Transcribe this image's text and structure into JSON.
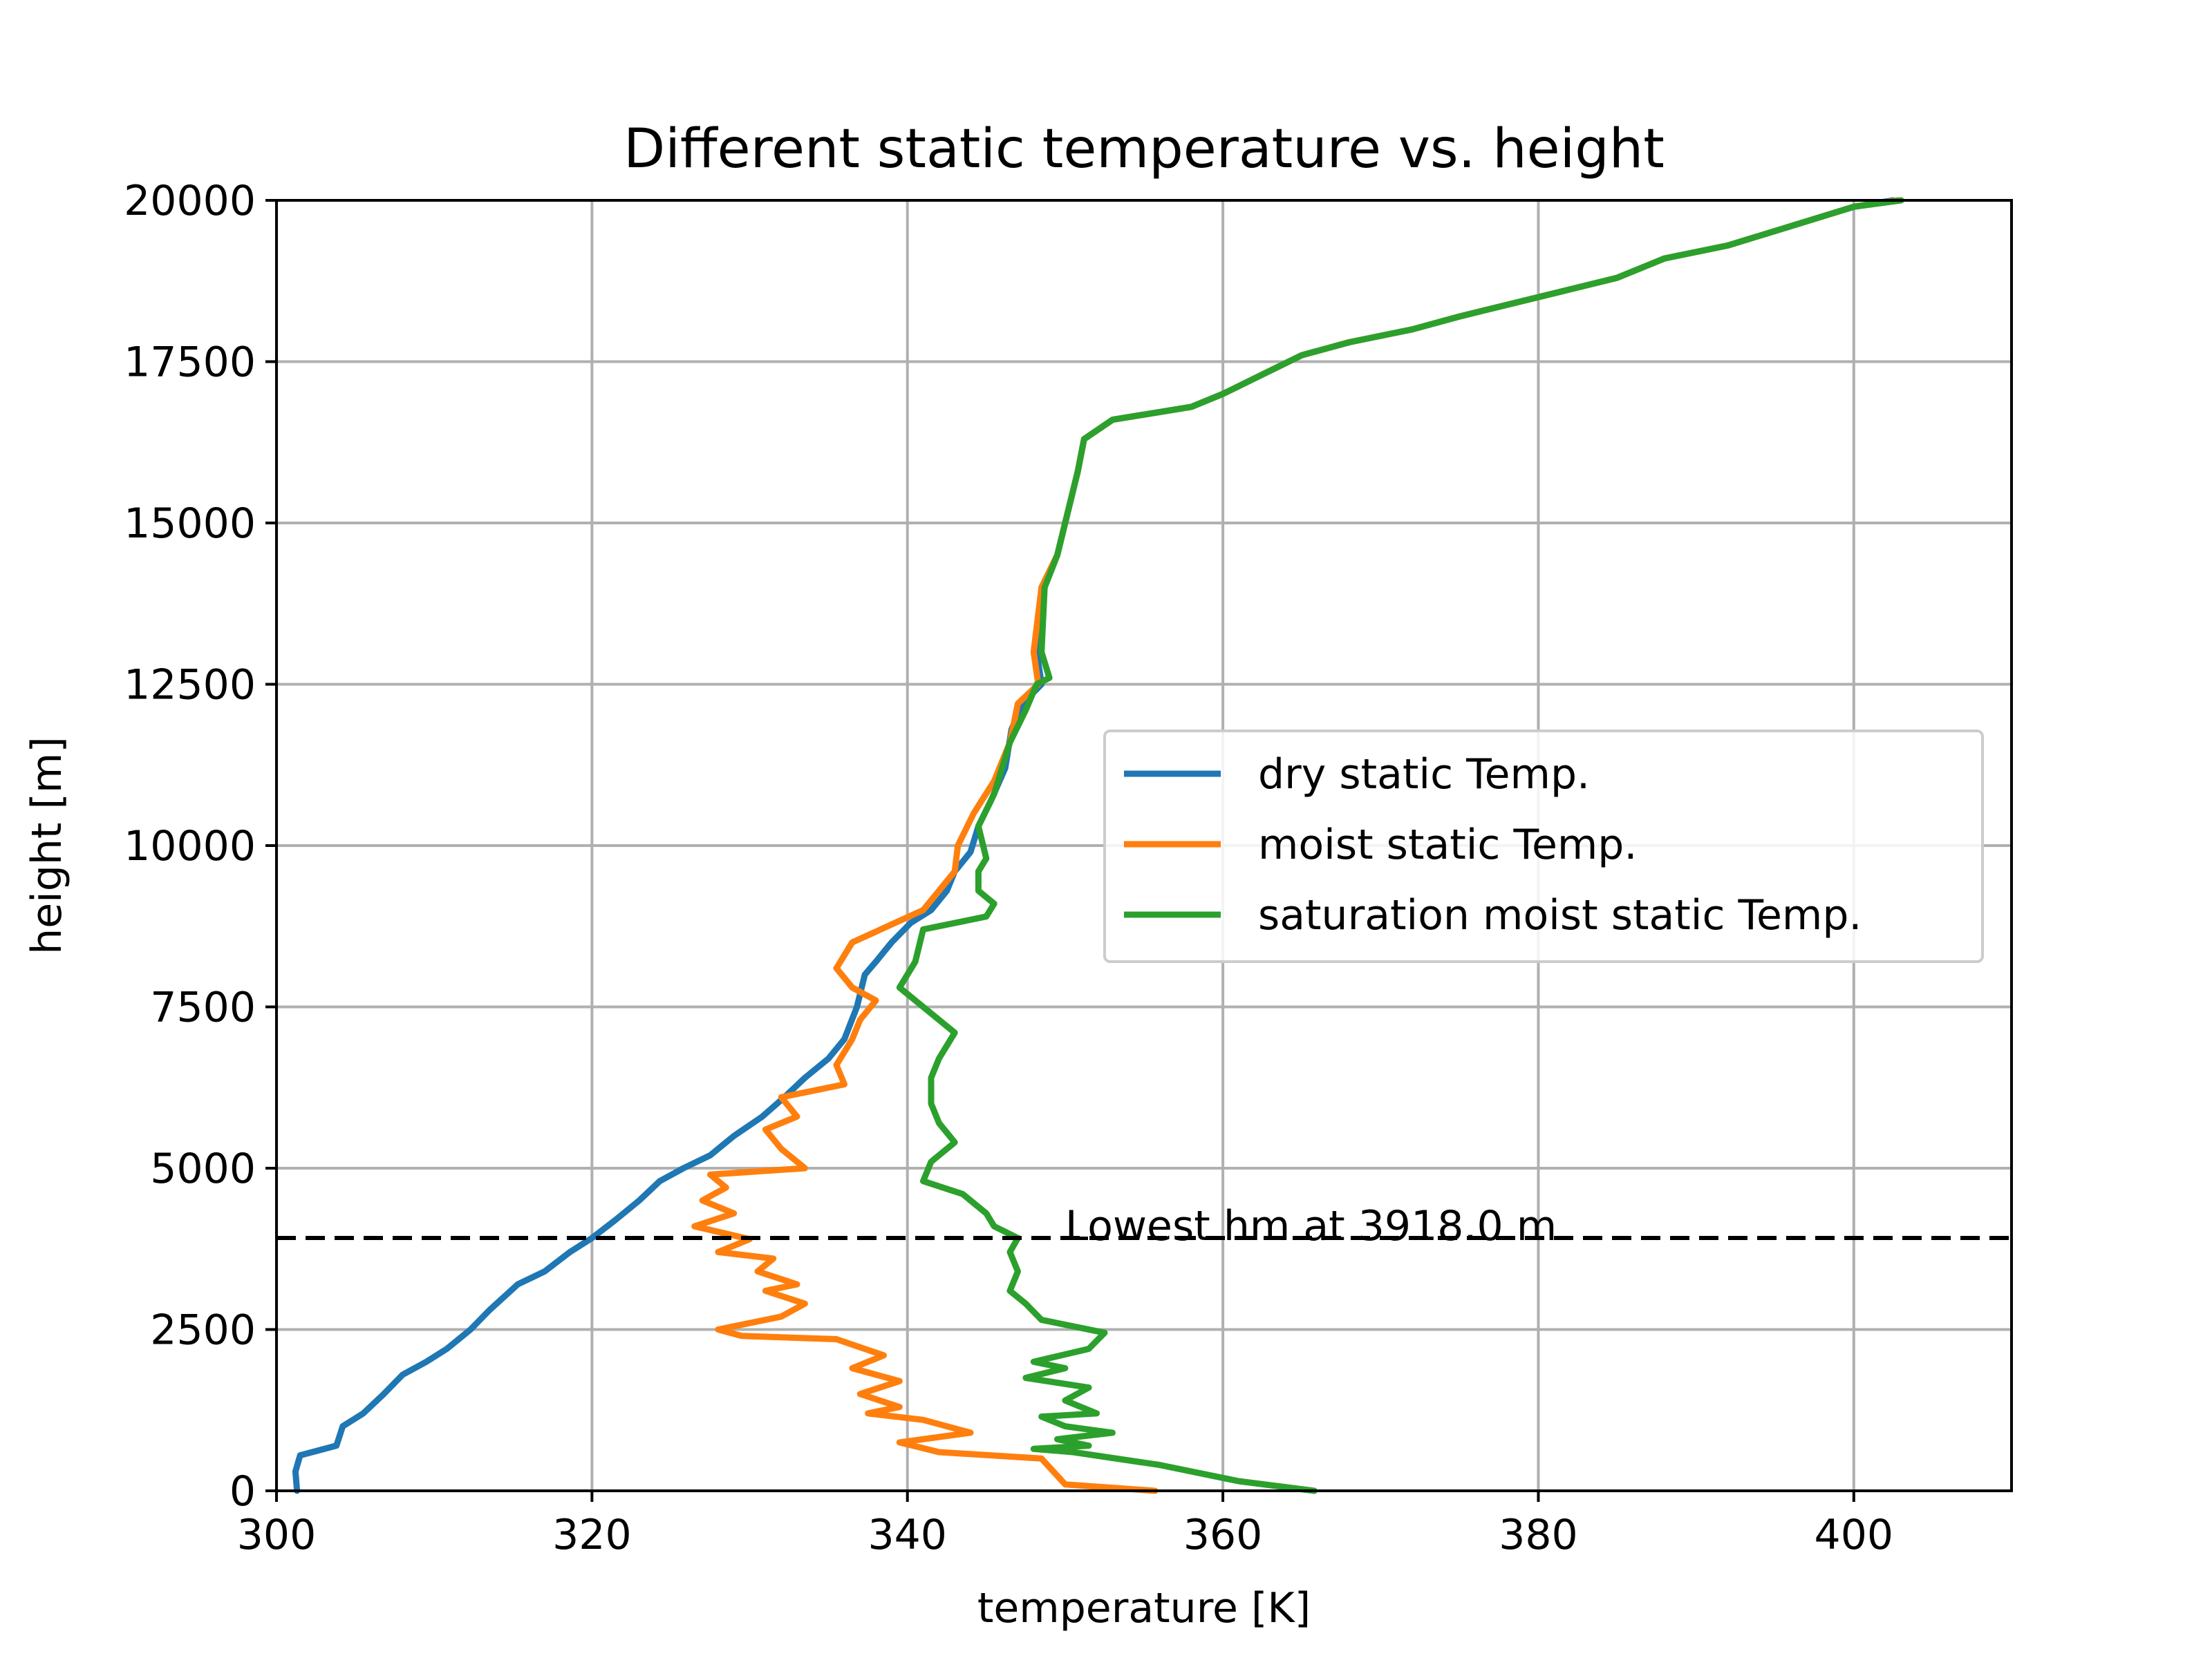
{
  "chart_data": {
    "type": "line",
    "title": "Different static temperature vs. height",
    "xlabel": "temperature [K]",
    "ylabel": "height [m]",
    "xlim": [
      300,
      410
    ],
    "ylim": [
      0,
      20000
    ],
    "xticks": [
      300,
      320,
      340,
      360,
      380,
      400
    ],
    "yticks": [
      0,
      2500,
      5000,
      7500,
      10000,
      12500,
      15000,
      17500,
      20000
    ],
    "grid": true,
    "legend_position": "center-right",
    "series": [
      {
        "name": "dry static Temp.",
        "color": "#1f77b4",
        "points": [
          [
            301.3,
            0
          ],
          [
            301.2,
            300
          ],
          [
            301.5,
            550
          ],
          [
            303.8,
            700
          ],
          [
            304.2,
            1000
          ],
          [
            305.5,
            1200
          ],
          [
            306.8,
            1500
          ],
          [
            308,
            1800
          ],
          [
            309.5,
            2000
          ],
          [
            310.8,
            2200
          ],
          [
            312.3,
            2500
          ],
          [
            313.5,
            2800
          ],
          [
            315.3,
            3200
          ],
          [
            317,
            3400
          ],
          [
            318.6,
            3700
          ],
          [
            320,
            3918
          ],
          [
            321.5,
            4200
          ],
          [
            323,
            4500
          ],
          [
            324.3,
            4800
          ],
          [
            325.8,
            5000
          ],
          [
            327.5,
            5200
          ],
          [
            329,
            5500
          ],
          [
            330.8,
            5800
          ],
          [
            332.2,
            6100
          ],
          [
            333.5,
            6400
          ],
          [
            335,
            6700
          ],
          [
            336,
            7000
          ],
          [
            336.8,
            7500
          ],
          [
            337.3,
            8000
          ],
          [
            338,
            8200
          ],
          [
            339,
            8500
          ],
          [
            340.2,
            8800
          ],
          [
            341.5,
            9000
          ],
          [
            342.5,
            9300
          ],
          [
            343,
            9600
          ],
          [
            344,
            9900
          ],
          [
            344.5,
            10300
          ],
          [
            345.3,
            10700
          ],
          [
            346.2,
            11200
          ],
          [
            346.6,
            11800
          ],
          [
            347.3,
            12200
          ],
          [
            348.5,
            12500
          ],
          [
            348.2,
            13000
          ],
          [
            348.5,
            14000
          ],
          [
            349.5,
            14500
          ],
          [
            350,
            15000
          ],
          [
            350.8,
            15800
          ],
          [
            351.2,
            16300
          ],
          [
            353,
            16600
          ],
          [
            358,
            16800
          ],
          [
            360,
            17000
          ],
          [
            362.5,
            17300
          ],
          [
            365,
            17600
          ],
          [
            368,
            17800
          ],
          [
            372,
            18000
          ],
          [
            375,
            18200
          ],
          [
            380,
            18500
          ],
          [
            385,
            18800
          ],
          [
            388,
            19100
          ],
          [
            392,
            19300
          ],
          [
            396,
            19600
          ],
          [
            400,
            19900
          ],
          [
            402.5,
            20000
          ]
        ]
      },
      {
        "name": "moist static Temp.",
        "color": "#ff7f0e",
        "points": [
          [
            355.7,
            0
          ],
          [
            350,
            100
          ],
          [
            348.5,
            500
          ],
          [
            342,
            600
          ],
          [
            339.5,
            750
          ],
          [
            344,
            900
          ],
          [
            341,
            1100
          ],
          [
            337.5,
            1200
          ],
          [
            339.5,
            1300
          ],
          [
            337,
            1500
          ],
          [
            339.5,
            1700
          ],
          [
            336.5,
            1900
          ],
          [
            338.5,
            2100
          ],
          [
            335.5,
            2350
          ],
          [
            329.5,
            2400
          ],
          [
            328,
            2500
          ],
          [
            332,
            2700
          ],
          [
            333.5,
            2900
          ],
          [
            331,
            3100
          ],
          [
            333,
            3200
          ],
          [
            330.5,
            3400
          ],
          [
            331.5,
            3600
          ],
          [
            328,
            3700
          ],
          [
            330,
            3900
          ],
          [
            326.5,
            4100
          ],
          [
            329,
            4300
          ],
          [
            327,
            4500
          ],
          [
            328.5,
            4700
          ],
          [
            327.5,
            4900
          ],
          [
            333.5,
            5000
          ],
          [
            332,
            5300
          ],
          [
            331,
            5600
          ],
          [
            333,
            5800
          ],
          [
            332,
            6100
          ],
          [
            336,
            6300
          ],
          [
            335.5,
            6600
          ],
          [
            336.5,
            7000
          ],
          [
            337,
            7300
          ],
          [
            338,
            7600
          ],
          [
            336.5,
            7800
          ],
          [
            335.5,
            8100
          ],
          [
            336.5,
            8500
          ],
          [
            341,
            9000
          ],
          [
            342,
            9300
          ],
          [
            343,
            9600
          ],
          [
            343.2,
            10000
          ],
          [
            344.2,
            10500
          ],
          [
            345.5,
            11000
          ],
          [
            346.5,
            11600
          ],
          [
            347,
            12200
          ],
          [
            348.3,
            12500
          ],
          [
            348,
            13000
          ],
          [
            348.5,
            14000
          ],
          [
            349.5,
            14500
          ],
          [
            350,
            15000
          ],
          [
            350.8,
            15800
          ],
          [
            351.2,
            16300
          ],
          [
            353,
            16600
          ],
          [
            358,
            16800
          ],
          [
            360,
            17000
          ],
          [
            362.5,
            17300
          ],
          [
            365,
            17600
          ],
          [
            368,
            17800
          ],
          [
            372,
            18000
          ],
          [
            375,
            18200
          ],
          [
            380,
            18500
          ],
          [
            385,
            18800
          ],
          [
            388,
            19100
          ],
          [
            392,
            19300
          ],
          [
            396,
            19600
          ],
          [
            400,
            19900
          ],
          [
            402.8,
            20000
          ]
        ]
      },
      {
        "name": "saturation moist static Temp.",
        "color": "#2ca02c",
        "points": [
          [
            365.8,
            0
          ],
          [
            361,
            150
          ],
          [
            356,
            400
          ],
          [
            350.5,
            600
          ],
          [
            348,
            650
          ],
          [
            351.5,
            700
          ],
          [
            349.5,
            800
          ],
          [
            353,
            900
          ],
          [
            350,
            1000
          ],
          [
            348.5,
            1150
          ],
          [
            352,
            1200
          ],
          [
            350,
            1400
          ],
          [
            351.5,
            1600
          ],
          [
            347.5,
            1750
          ],
          [
            350,
            1900
          ],
          [
            348,
            2000
          ],
          [
            351.5,
            2200
          ],
          [
            352.5,
            2450
          ],
          [
            348.5,
            2650
          ],
          [
            347.5,
            2900
          ],
          [
            346.5,
            3100
          ],
          [
            347,
            3400
          ],
          [
            346.5,
            3700
          ],
          [
            347,
            3918
          ],
          [
            345.5,
            4100
          ],
          [
            345,
            4300
          ],
          [
            343.5,
            4600
          ],
          [
            341,
            4800
          ],
          [
            341.5,
            5100
          ],
          [
            343,
            5400
          ],
          [
            342,
            5700
          ],
          [
            341.5,
            6000
          ],
          [
            341.5,
            6400
          ],
          [
            342,
            6700
          ],
          [
            343,
            7100
          ],
          [
            341,
            7500
          ],
          [
            339.5,
            7800
          ],
          [
            340.5,
            8200
          ],
          [
            341,
            8700
          ],
          [
            345,
            8900
          ],
          [
            345.5,
            9100
          ],
          [
            344.5,
            9300
          ],
          [
            344.5,
            9600
          ],
          [
            345,
            9800
          ],
          [
            344.5,
            10300
          ],
          [
            345.5,
            10800
          ],
          [
            346,
            11200
          ],
          [
            346.5,
            11600
          ],
          [
            347.5,
            12100
          ],
          [
            348.2,
            12500
          ],
          [
            349,
            12600
          ],
          [
            348.5,
            13000
          ],
          [
            348.7,
            14000
          ],
          [
            349.5,
            14500
          ],
          [
            350,
            15000
          ],
          [
            350.8,
            15800
          ],
          [
            351.2,
            16300
          ],
          [
            353,
            16600
          ],
          [
            358,
            16800
          ],
          [
            360,
            17000
          ],
          [
            362.5,
            17300
          ],
          [
            365,
            17600
          ],
          [
            368,
            17800
          ],
          [
            372,
            18000
          ],
          [
            375,
            18200
          ],
          [
            380,
            18500
          ],
          [
            385,
            18800
          ],
          [
            388,
            19100
          ],
          [
            392,
            19300
          ],
          [
            396,
            19600
          ],
          [
            400,
            19900
          ],
          [
            403,
            20000
          ]
        ]
      }
    ],
    "hline": {
      "y": 3918.0,
      "style": "dashed",
      "color": "#000000"
    },
    "annotation": {
      "text": "Lowest hm at 3918.0 m",
      "x": 350,
      "y": 4100
    }
  }
}
